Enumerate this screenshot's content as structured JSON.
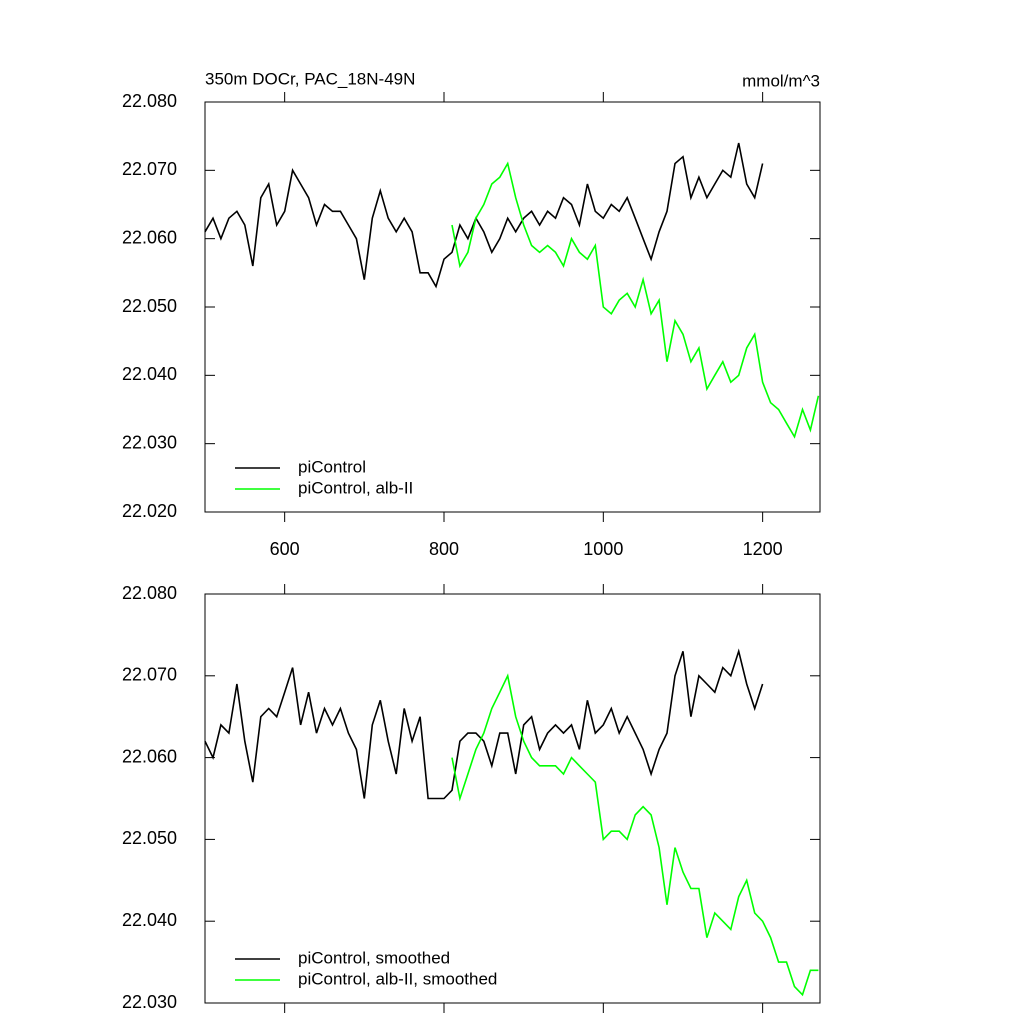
{
  "chart_data": [
    {
      "type": "line",
      "title": "350m DOCr, PAC_18N-49N",
      "units": "mmol/m^3",
      "xlim": [
        500,
        1272
      ],
      "xticks": [
        600,
        800,
        1000,
        1200
      ],
      "ylim": [
        22.02,
        22.08
      ],
      "yticks": [
        {
          "value": 22.02,
          "label": "22.020"
        },
        {
          "value": 22.03,
          "label": "22.030"
        },
        {
          "value": 22.04,
          "label": "22.040"
        },
        {
          "value": 22.05,
          "label": "22.050"
        },
        {
          "value": 22.06,
          "label": "22.060"
        },
        {
          "value": 22.07,
          "label": "22.070"
        },
        {
          "value": 22.08,
          "label": "22.080"
        }
      ],
      "legend": "lower left",
      "series": [
        {
          "name": "piControl",
          "color": "#000000",
          "x": [
            500,
            510,
            520,
            530,
            540,
            550,
            560,
            570,
            580,
            590,
            600,
            610,
            620,
            630,
            640,
            650,
            660,
            670,
            680,
            690,
            700,
            710,
            720,
            730,
            740,
            750,
            760,
            770,
            780,
            790,
            800,
            810,
            820,
            830,
            840,
            850,
            860,
            870,
            880,
            890,
            900,
            910,
            920,
            930,
            940,
            950,
            960,
            970,
            980,
            990,
            1000,
            1010,
            1020,
            1030,
            1040,
            1050,
            1060,
            1070,
            1080,
            1090,
            1100,
            1110,
            1120,
            1130,
            1140,
            1150,
            1160,
            1170,
            1180,
            1190,
            1200
          ],
          "values": [
            22.061,
            22.063,
            22.06,
            22.063,
            22.064,
            22.062,
            22.056,
            22.066,
            22.068,
            22.062,
            22.064,
            22.07,
            22.068,
            22.066,
            22.062,
            22.065,
            22.064,
            22.064,
            22.062,
            22.06,
            22.054,
            22.063,
            22.067,
            22.063,
            22.061,
            22.063,
            22.061,
            22.055,
            22.055,
            22.053,
            22.057,
            22.058,
            22.062,
            22.06,
            22.063,
            22.061,
            22.058,
            22.06,
            22.063,
            22.061,
            22.063,
            22.064,
            22.062,
            22.064,
            22.063,
            22.066,
            22.065,
            22.062,
            22.068,
            22.064,
            22.063,
            22.065,
            22.064,
            22.066,
            22.063,
            22.06,
            22.057,
            22.061,
            22.064,
            22.071,
            22.072,
            22.066,
            22.069,
            22.066,
            22.068,
            22.07,
            22.069,
            22.074,
            22.068,
            22.066,
            22.071
          ]
        },
        {
          "name": "piControl, alb-II",
          "color": "#00ff00",
          "x": [
            810,
            820,
            830,
            840,
            850,
            860,
            870,
            880,
            890,
            900,
            910,
            920,
            930,
            940,
            950,
            960,
            970,
            980,
            990,
            1000,
            1010,
            1020,
            1030,
            1040,
            1050,
            1060,
            1070,
            1080,
            1090,
            1100,
            1110,
            1120,
            1130,
            1140,
            1150,
            1160,
            1170,
            1180,
            1190,
            1200,
            1210,
            1220,
            1230,
            1240,
            1250,
            1260,
            1270
          ],
          "values": [
            22.062,
            22.056,
            22.058,
            22.063,
            22.065,
            22.068,
            22.069,
            22.071,
            22.066,
            22.062,
            22.059,
            22.058,
            22.059,
            22.058,
            22.056,
            22.06,
            22.058,
            22.057,
            22.059,
            22.05,
            22.049,
            22.051,
            22.052,
            22.05,
            22.054,
            22.049,
            22.051,
            22.042,
            22.048,
            22.046,
            22.042,
            22.044,
            22.038,
            22.04,
            22.042,
            22.039,
            22.04,
            22.044,
            22.046,
            22.039,
            22.036,
            22.035,
            22.033,
            22.031,
            22.035,
            22.032,
            22.037
          ]
        }
      ]
    },
    {
      "type": "line",
      "xlim": [
        500,
        1272
      ],
      "xticks": [
        600,
        800,
        1000,
        1200
      ],
      "ylim": [
        22.03,
        22.08
      ],
      "yticks": [
        {
          "value": 22.03,
          "label": "22.030"
        },
        {
          "value": 22.04,
          "label": "22.040"
        },
        {
          "value": 22.05,
          "label": "22.050"
        },
        {
          "value": 22.06,
          "label": "22.060"
        },
        {
          "value": 22.07,
          "label": "22.070"
        },
        {
          "value": 22.08,
          "label": "22.080"
        }
      ],
      "legend": "lower left",
      "series": [
        {
          "name": "piControl, smoothed",
          "color": "#000000",
          "x": [
            500,
            510,
            520,
            530,
            540,
            550,
            560,
            570,
            580,
            590,
            600,
            610,
            620,
            630,
            640,
            650,
            660,
            670,
            680,
            690,
            700,
            710,
            720,
            730,
            740,
            750,
            760,
            770,
            780,
            790,
            800,
            810,
            820,
            830,
            840,
            850,
            860,
            870,
            880,
            890,
            900,
            910,
            920,
            930,
            940,
            950,
            960,
            970,
            980,
            990,
            1000,
            1010,
            1020,
            1030,
            1040,
            1050,
            1060,
            1070,
            1080,
            1090,
            1100,
            1110,
            1120,
            1130,
            1140,
            1150,
            1160,
            1170,
            1180,
            1190,
            1200
          ],
          "values": [
            22.062,
            22.06,
            22.064,
            22.063,
            22.069,
            22.062,
            22.057,
            22.065,
            22.066,
            22.065,
            22.068,
            22.071,
            22.064,
            22.068,
            22.063,
            22.066,
            22.064,
            22.066,
            22.063,
            22.061,
            22.055,
            22.064,
            22.067,
            22.062,
            22.058,
            22.066,
            22.062,
            22.065,
            22.055,
            22.055,
            22.055,
            22.056,
            22.062,
            22.063,
            22.063,
            22.062,
            22.059,
            22.063,
            22.063,
            22.058,
            22.064,
            22.065,
            22.061,
            22.063,
            22.064,
            22.063,
            22.064,
            22.061,
            22.067,
            22.063,
            22.064,
            22.066,
            22.063,
            22.065,
            22.063,
            22.061,
            22.058,
            22.061,
            22.063,
            22.07,
            22.073,
            22.065,
            22.07,
            22.069,
            22.068,
            22.071,
            22.07,
            22.073,
            22.069,
            22.066,
            22.069
          ]
        },
        {
          "name": "piControl, alb-II, smoothed",
          "color": "#00ff00",
          "x": [
            810,
            820,
            830,
            840,
            850,
            860,
            870,
            880,
            890,
            900,
            910,
            920,
            930,
            940,
            950,
            960,
            970,
            980,
            990,
            1000,
            1010,
            1020,
            1030,
            1040,
            1050,
            1060,
            1070,
            1080,
            1090,
            1100,
            1110,
            1120,
            1130,
            1140,
            1150,
            1160,
            1170,
            1180,
            1190,
            1200,
            1210,
            1220,
            1230,
            1240,
            1250,
            1260,
            1270
          ],
          "values": [
            22.06,
            22.055,
            22.058,
            22.061,
            22.063,
            22.066,
            22.068,
            22.07,
            22.065,
            22.062,
            22.06,
            22.059,
            22.059,
            22.059,
            22.058,
            22.06,
            22.059,
            22.058,
            22.057,
            22.05,
            22.051,
            22.051,
            22.05,
            22.053,
            22.054,
            22.053,
            22.049,
            22.042,
            22.049,
            22.046,
            22.044,
            22.044,
            22.038,
            22.041,
            22.04,
            22.039,
            22.043,
            22.045,
            22.041,
            22.04,
            22.038,
            22.035,
            22.035,
            22.032,
            22.031,
            22.034,
            22.034
          ]
        }
      ]
    }
  ]
}
